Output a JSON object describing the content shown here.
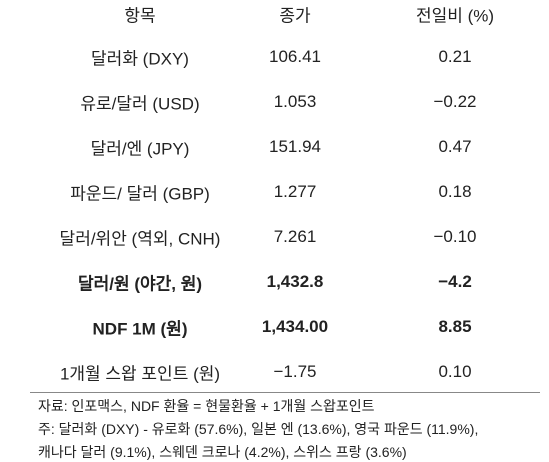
{
  "table": {
    "header": [
      "항목",
      "종가",
      "전일비 (%)"
    ],
    "rows": [
      [
        "달러화 (DXY)",
        "106.41",
        "0.21"
      ],
      [
        "유로/달러 (USD)",
        "1.053",
        "−0.22"
      ],
      [
        "달러/엔 (JPY)",
        "151.94",
        "0.47"
      ],
      [
        "파운드/ 달러 (GBP)",
        "1.277",
        "0.18"
      ],
      [
        "달러/위안 (역외, CNH)",
        "7.261",
        "−0.10"
      ],
      [
        "달러/원 (야간, 원)",
        "1,432.8",
        "−4.2"
      ],
      [
        "NDF 1M (원)",
        "1,434.00",
        "8.85"
      ],
      [
        "1개월 스왑 포인트 (원)",
        "−1.75",
        "0.10"
      ]
    ]
  },
  "notes": [
    "자료: 인포맥스, NDF 환율 = 현물환율 + 1개월 스왑포인트",
    "주: 달러화 (DXY) - 유로화 (57.6%), 일본 엔 (13.6%), 영국 파운드 (11.9%),",
    "캐나다 달러 (9.1%), 스웨덴 크로나 (4.2%), 스위스 프랑 (3.6%)"
  ]
}
